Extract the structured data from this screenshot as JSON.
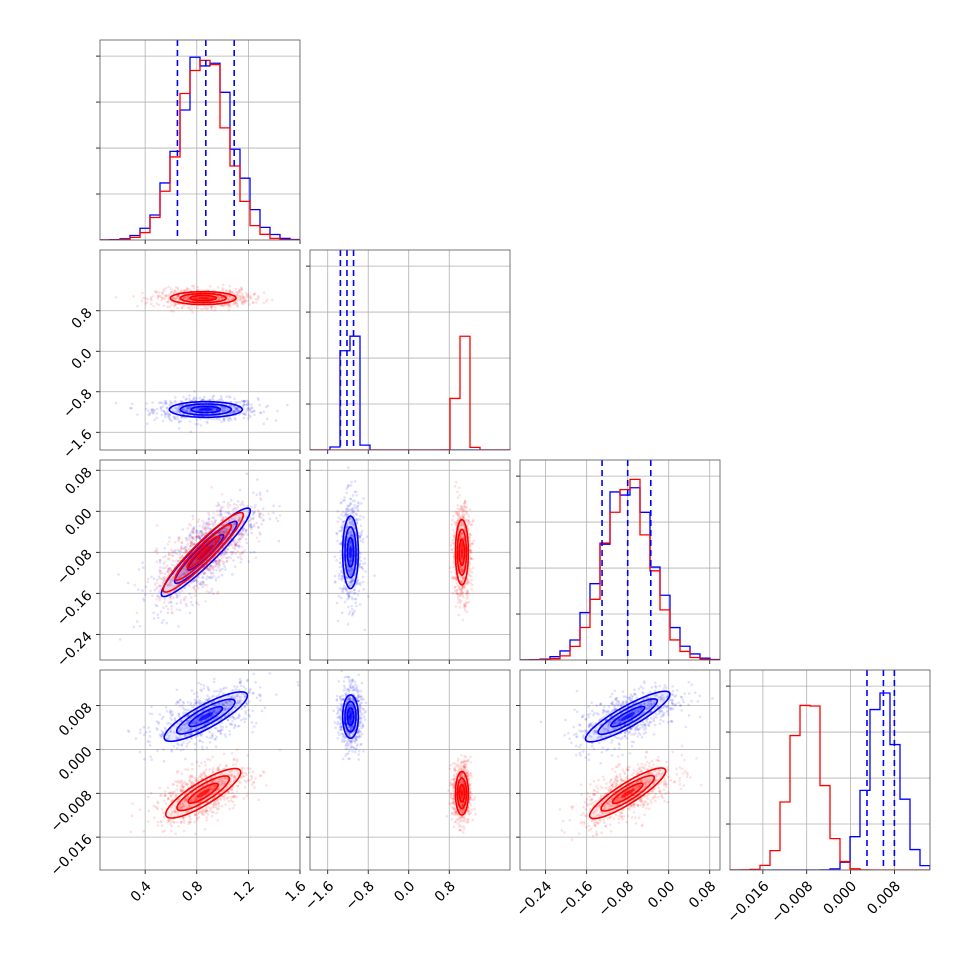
{
  "colors": {
    "series_a": "#0000ff",
    "series_b": "#ff0000",
    "grid": "#b0b0b0",
    "quantile": "#0000ff"
  },
  "chart_data": {
    "type": "corner",
    "grid": true,
    "parameters": [
      {
        "range": [
          0.05,
          1.6
        ],
        "ticks": [
          0.4,
          0.8,
          1.2,
          1.6
        ],
        "tick_labels": [
          "0.4",
          "0.8",
          "1.2",
          "1.6"
        ],
        "hist_yticks": 4,
        "hist_max": 1.0
      },
      {
        "range": [
          -1.95,
          2.0
        ],
        "ticks": [
          -1.6,
          -0.8,
          0.0,
          0.8
        ],
        "tick_labels": [
          "−1.6",
          "−0.8",
          "0.0",
          "0.8"
        ],
        "hist_yticks": 4,
        "hist_max": 1.2
      },
      {
        "range": [
          -0.29,
          0.1
        ],
        "ticks": [
          -0.24,
          -0.16,
          -0.08,
          0.0,
          0.08
        ],
        "tick_labels": [
          "−0.24",
          "−0.16",
          "−0.08",
          "0.00",
          "0.08"
        ],
        "hist_yticks": 4,
        "hist_max": 1.05
      },
      {
        "range": [
          -0.022,
          0.0145
        ],
        "ticks": [
          -0.016,
          -0.008,
          0.0,
          0.008
        ],
        "tick_labels": [
          "−0.016",
          "−0.008",
          "0.000",
          "0.008"
        ],
        "hist_yticks": 4,
        "hist_max": 1.05
      }
    ],
    "series": [
      {
        "color": "#0000ff",
        "mean": [
          0.87,
          -1.15,
          -0.08,
          0.006
        ],
        "std": [
          0.2,
          0.11,
          0.05,
          0.0028
        ],
        "quantiles": [
          [
            0.65,
            0.87,
            1.09
          ],
          [
            -1.35,
            -1.22,
            -1.09
          ],
          [
            -0.13,
            -0.08,
            -0.035
          ],
          [
            0.003,
            0.006,
            0.008
          ]
        ]
      },
      {
        "color": "#ff0000",
        "mean": [
          0.85,
          1.05,
          -0.08,
          -0.008
        ],
        "std": [
          0.18,
          0.09,
          0.045,
          0.0028
        ]
      }
    ],
    "correlations": [
      {
        "pair": [
          0,
          2
        ],
        "rho": 0.7
      },
      {
        "pair": [
          0,
          3
        ],
        "rho": 0.55
      },
      {
        "pair": [
          2,
          3
        ],
        "rho": 0.6
      }
    ]
  }
}
